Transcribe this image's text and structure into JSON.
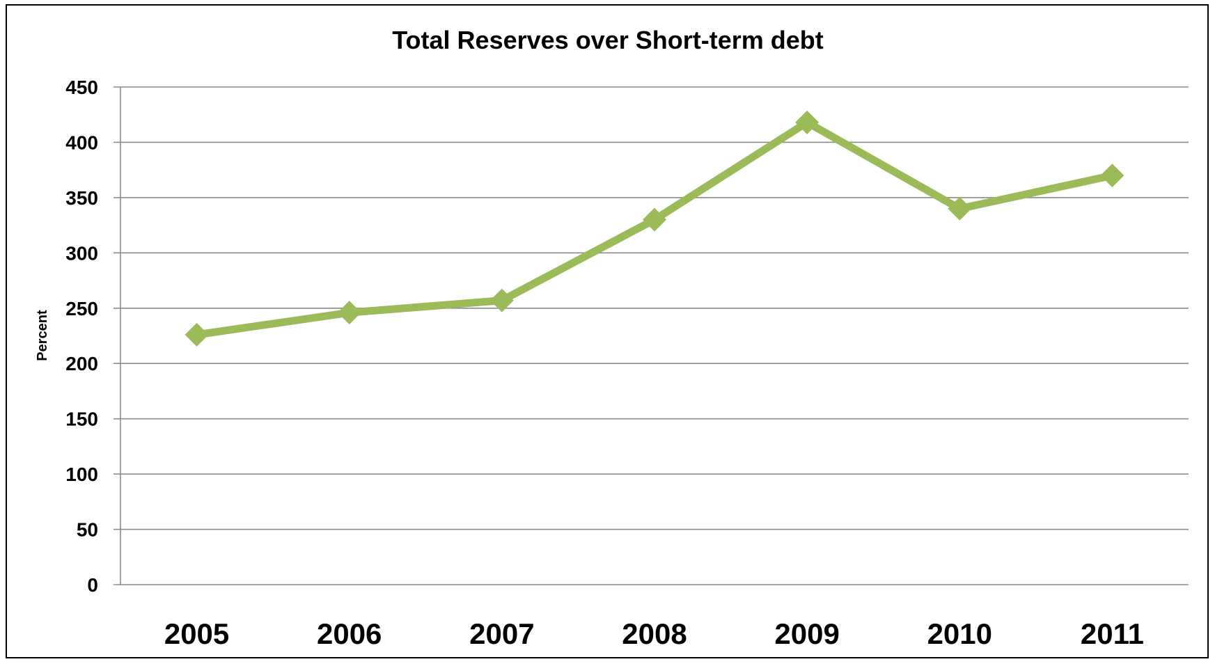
{
  "chart_data": {
    "type": "line",
    "title": "Total Reserves over Short-term debt",
    "xlabel": "",
    "ylabel": "Percent",
    "categories": [
      "2005",
      "2006",
      "2007",
      "2008",
      "2009",
      "2010",
      "2011"
    ],
    "series": [
      {
        "values": [
          226,
          246,
          257,
          330,
          418,
          340,
          370
        ]
      }
    ],
    "ylim": [
      0,
      450
    ],
    "yticks": [
      0,
      50,
      100,
      150,
      200,
      250,
      300,
      350,
      400,
      450
    ],
    "grid": true,
    "legend": "none",
    "colors": {
      "line": "#9BBB59",
      "grid": "#8A8A8A"
    },
    "marker": "diamond"
  }
}
